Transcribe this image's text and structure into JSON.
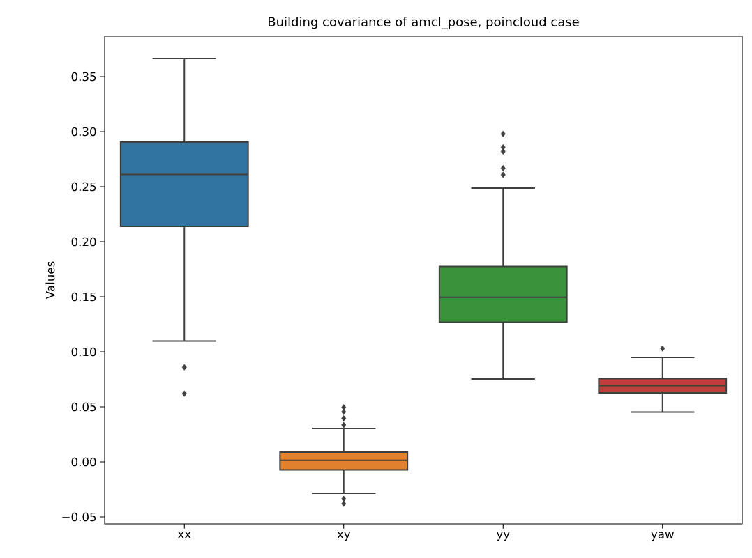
{
  "chart_data": {
    "type": "box",
    "title": "Building covariance of amcl_pose, poincloud case",
    "ylabel": "Values",
    "categories": [
      "xx",
      "xy",
      "yy",
      "yaw"
    ],
    "colors": [
      "#3274a1",
      "#e1812c",
      "#3a923a",
      "#c03d3e"
    ],
    "boxes": [
      {
        "low": 0.1098,
        "q1": 0.2139,
        "median": 0.261,
        "q3": 0.2905,
        "high": 0.3665,
        "outliers": [
          0.086,
          0.062
        ]
      },
      {
        "low": -0.0285,
        "q1": -0.0072,
        "median": 0.0014,
        "q3": 0.0089,
        "high": 0.0304,
        "outliers": [
          0.0496,
          0.0455,
          0.0396,
          0.0335,
          -0.0336,
          -0.038
        ]
      },
      {
        "low": 0.0753,
        "q1": 0.1269,
        "median": 0.1496,
        "q3": 0.1775,
        "high": 0.2487,
        "outliers": [
          0.298,
          0.2858,
          0.282,
          0.2667,
          0.2608
        ]
      },
      {
        "low": 0.0453,
        "q1": 0.0627,
        "median": 0.0694,
        "q3": 0.0756,
        "high": 0.095,
        "outliers": [
          0.103
        ]
      }
    ],
    "marker": "diamond",
    "ylim": [
      -0.0563,
      0.3867
    ],
    "yticks": [
      {
        "value": -0.05,
        "label": "−0.05"
      },
      {
        "value": 0.0,
        "label": "0.00"
      },
      {
        "value": 0.05,
        "label": "0.05"
      },
      {
        "value": 0.1,
        "label": "0.10"
      },
      {
        "value": 0.15,
        "label": "0.15"
      },
      {
        "value": 0.2,
        "label": "0.20"
      },
      {
        "value": 0.25,
        "label": "0.25"
      },
      {
        "value": 0.3,
        "label": "0.30"
      },
      {
        "value": 0.35,
        "label": "0.35"
      }
    ]
  }
}
